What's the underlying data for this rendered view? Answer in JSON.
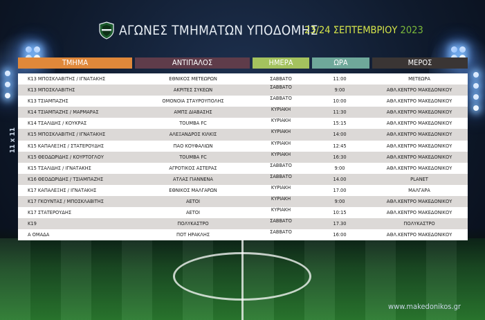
{
  "header": {
    "title": "ΑΓΩΝΕΣ ΤΜΗΜΑΤΩΝ ΥΠΟΔΟΜΗΣ",
    "dates": "23/24 ΣΕΠΤΕΜΒΡΙΟΥ",
    "year": "2023"
  },
  "side_label": "11 x 11",
  "columns": {
    "team": "ΤΜΗΜΑ",
    "opponent": "ΑΝΤΙΠΑΛΟΣ",
    "day": "ΗΜΕΡΑ",
    "time": "ΩΡΑ",
    "venue": "ΜΕΡΟΣ"
  },
  "column_colors": {
    "team": "#e0883a",
    "opponent": "#5f3c4a",
    "day": "#a4c25e",
    "time": "#6fa89a",
    "venue": "#3a3534"
  },
  "rows": [
    {
      "team": "Κ13 ΜΠΟΣΚΛΑΒΙΤΗΣ / ΙΓΝΑΤΑΚΗΣ",
      "opponent": "ΕΘΝΙΚΟΣ ΜΕΤΕΩΡΩΝ",
      "day": "ΣΑΒΒΑΤΟ",
      "time": "11:00",
      "venue": "ΜΕΤΕΩΡΑ"
    },
    {
      "team": "Κ13 ΜΠΟΣΚΛΑΒΙΤΗΣ",
      "opponent": "ΑΚΡΙΤΕΣ ΣΥΚΕΩΝ",
      "day": "ΣΑΒΒΑΤΟ",
      "time": "9:00",
      "venue": "ΑΘΛ.ΚΕΝΤΡΟ ΜΑΚΕΔΟΝΙΚΟΥ"
    },
    {
      "team": "Κ13 ΤΣΙΑΜΠΑΖΗΣ",
      "opponent": "ΟΜΟΝΟΙΑ ΣΤΑΥΡΟΥΠΟΛΗΣ",
      "day": "ΣΑΒΒΑΤΟ",
      "time": "10:00",
      "venue": "ΑΘΛ.ΚΕΝΤΡΟ ΜΑΚΕΔΟΝΙΚΟΥ"
    },
    {
      "team": "Κ14 ΤΣΙΑΜΠΑΖΗΣ / ΜΑΡΜΑΡΑΣ",
      "opponent": "ΑΜΠΣ ΔΙΑΒΑΣΗΣ",
      "day": "ΚΥΡΙΑΚΗ",
      "time": "11:30",
      "venue": "ΑΘΛ.ΚΕΝΤΡΟ ΜΑΚΕΔΟΝΙΚΟΥ"
    },
    {
      "team": "Κ14 ΤΣΑΛΙΔΗΣ / ΚΟΥΚΡΑΣ",
      "opponent": "TOUMBA FC",
      "day": "ΚΥΡΙΑΚΗ",
      "time": "15:15",
      "venue": "ΑΘΛ.ΚΕΝΤΡΟ ΜΑΚΕΔΟΝΙΚΟΥ"
    },
    {
      "team": "Κ15 ΜΠΟΣΚΛΑΒΙΤΗΣ / ΙΓΝΑΤΑΚΗΣ",
      "opponent": "ΑΛΕΞΑΝΔΡΟΣ ΚΙΛΚΙΣ",
      "day": "ΚΥΡΙΑΚΗ",
      "time": "14:00",
      "venue": "ΑΘΛ.ΚΕΝΤΡΟ ΜΑΚΕΔΟΝΙΚΟΥ"
    },
    {
      "team": "Κ15 ΚΑΠΑΛΕΞΗΣ / ΣΤΑΤΕΡΟΥΔΗΣ",
      "opponent": "ΠΑΟ ΚΟΥΦΑΛΙΩΝ",
      "day": "ΚΥΡΙΑΚΗ",
      "time": "12:45",
      "venue": "ΑΘΛ.ΚΕΝΤΡΟ ΜΑΚΕΔΟΝΙΚΟΥ"
    },
    {
      "team": "Κ15 ΘΕΟΔΩΡΙΔΗΣ / ΚΟΥΡΤΟΓΛΟΥ",
      "opponent": "TOUMBA FC",
      "day": "ΚΥΡΙΑΚΗ",
      "time": "16:30",
      "venue": "ΑΘΛ.ΚΕΝΤΡΟ ΜΑΚΕΔΟΝΙΚΟΥ"
    },
    {
      "team": "Κ15 ΤΣΑΛΙΔΗΣ / ΙΓΝΑΤΑΚΗΣ",
      "opponent": "ΑΓΡΟΤΙΚΟΣ ΑΣΤΕΡΑΣ",
      "day": "ΣΑΒΒΑΤΟ",
      "time": "9:00",
      "venue": "ΑΘΛ.ΚΕΝΤΡΟ ΜΑΚΕΔΟΝΙΚΟΥ"
    },
    {
      "team": "Κ16 ΘΕΟΔΩΡΙΔΗΣ / ΤΣΙΑΜΠΑΖΗΣ",
      "opponent": "ΑΤΛΑΣ ΓΙΑΝΝΕΝΑ",
      "day": "ΣΑΒΒΑΤΟ",
      "time": "14.00",
      "venue": "PLANET"
    },
    {
      "team": "Κ17 ΚΑΠΑΛΕΞΗΣ / ΙΓΝΑΤΑΚΗΣ",
      "opponent": "ΕΘΝΙΚΟΣ ΜΑΛΓΑΡΩΝ",
      "day": "ΚΥΡΙΑΚΗ",
      "time": "17.00",
      "venue": "ΜΑΛΓΑΡΑ"
    },
    {
      "team": "Κ17 ΓΚΟΥΝΤΑΣ / ΜΠΟΣΚΛΑΒΙΤΗΣ",
      "opponent": "ΑΕΤΟΙ",
      "day": "ΚΥΡΙΑΚΗ",
      "time": "9:00",
      "venue": "ΑΘΛ.ΚΕΝΤΡΟ ΜΑΚΕΔΟΝΙΚΟΥ"
    },
    {
      "team": "Κ17 ΣΤΑΤΕΡΟΥΔΗΣ",
      "opponent": "ΑΕΤΟΙ",
      "day": "ΚΥΡΙΑΚΗ",
      "time": "10:15",
      "venue": "ΑΘΛ.ΚΕΝΤΡΟ ΜΑΚΕΔΟΝΙΚΟΥ"
    },
    {
      "team": "Κ19",
      "opponent": "ΠΟΛΥΚΑΣΤΡΟ",
      "day": "ΣΑΒΒΑΤΟ",
      "time": "17.30",
      "venue": "ΠΟΛΥΚΑΣΤΡΟ"
    },
    {
      "team": "Α ΟΜΑΔΑ",
      "opponent": "ΠΟΤ ΗΡΑΚΛΗΣ",
      "day": "ΣΑΒΒΑΤΟ",
      "time": "16:00",
      "venue": "ΑΘΛ.ΚΕΝΤΡΟ ΜΑΚΕΔΟΝΙΚΟΥ"
    }
  ],
  "website": "www.makedonikos.gr"
}
